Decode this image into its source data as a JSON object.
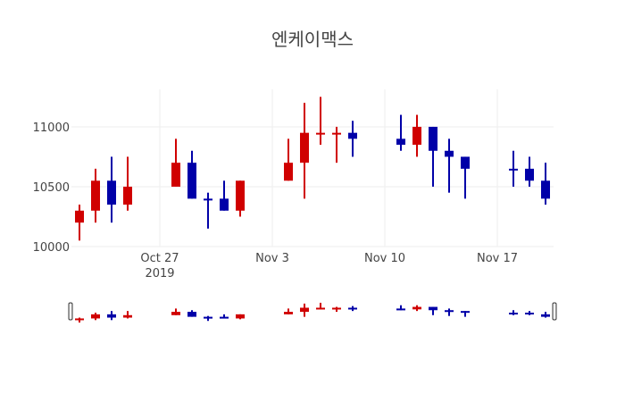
{
  "title": "엔케이맥스",
  "colors": {
    "increasing": "#d00000",
    "decreasing": "#0000a8",
    "grid": "#eeeeee",
    "text": "#444444"
  },
  "chart_data": {
    "type": "candlestick",
    "title": "엔케이맥스",
    "xlabel": "",
    "ylabel": "",
    "ylim": [
      10000,
      11313
    ],
    "xlim": [
      "2019-10-21 12:00",
      "2019-11-20 12:00"
    ],
    "grid": true,
    "legend": false,
    "rangeslider": true,
    "x_ticks": [
      {
        "date": "2019-10-27",
        "label": "Oct 27",
        "sublabel": "2019"
      },
      {
        "date": "2019-11-03",
        "label": "Nov 3",
        "sublabel": ""
      },
      {
        "date": "2019-11-10",
        "label": "Nov 10",
        "sublabel": ""
      },
      {
        "date": "2019-11-17",
        "label": "Nov 17",
        "sublabel": ""
      }
    ],
    "y_ticks": [
      10000,
      10500,
      11000
    ],
    "series": [
      {
        "date": "2019-10-22",
        "open": 10200,
        "high": 10350,
        "low": 10050,
        "close": 10300
      },
      {
        "date": "2019-10-23",
        "open": 10300,
        "high": 10650,
        "low": 10200,
        "close": 10550
      },
      {
        "date": "2019-10-24",
        "open": 10550,
        "high": 10750,
        "low": 10200,
        "close": 10350
      },
      {
        "date": "2019-10-25",
        "open": 10350,
        "high": 10750,
        "low": 10300,
        "close": 10500
      },
      {
        "date": "2019-10-28",
        "open": 10500,
        "high": 10900,
        "low": 10500,
        "close": 10700
      },
      {
        "date": "2019-10-29",
        "open": 10700,
        "high": 10800,
        "low": 10400,
        "close": 10400
      },
      {
        "date": "2019-10-30",
        "open": 10400,
        "high": 10450,
        "low": 10150,
        "close": 10400
      },
      {
        "date": "2019-10-31",
        "open": 10400,
        "high": 10550,
        "low": 10300,
        "close": 10300
      },
      {
        "date": "2019-11-01",
        "open": 10300,
        "high": 10550,
        "low": 10250,
        "close": 10550
      },
      {
        "date": "2019-11-04",
        "open": 10550,
        "high": 10900,
        "low": 10550,
        "close": 10700
      },
      {
        "date": "2019-11-05",
        "open": 10700,
        "high": 11200,
        "low": 10400,
        "close": 10950
      },
      {
        "date": "2019-11-06",
        "open": 10950,
        "high": 11250,
        "low": 10850,
        "close": 10950
      },
      {
        "date": "2019-11-07",
        "open": 10950,
        "high": 11000,
        "low": 10700,
        "close": 10950
      },
      {
        "date": "2019-11-08",
        "open": 10950,
        "high": 11050,
        "low": 10750,
        "close": 10900
      },
      {
        "date": "2019-11-11",
        "open": 10900,
        "high": 11100,
        "low": 10800,
        "close": 10850
      },
      {
        "date": "2019-11-12",
        "open": 10850,
        "high": 11100,
        "low": 10750,
        "close": 11000
      },
      {
        "date": "2019-11-13",
        "open": 11000,
        "high": 11000,
        "low": 10500,
        "close": 10800
      },
      {
        "date": "2019-11-14",
        "open": 10800,
        "high": 10900,
        "low": 10450,
        "close": 10750
      },
      {
        "date": "2019-11-15",
        "open": 10750,
        "high": 10750,
        "low": 10400,
        "close": 10650
      },
      {
        "date": "2019-11-18",
        "open": 10650,
        "high": 10800,
        "low": 10500,
        "close": 10650
      },
      {
        "date": "2019-11-19",
        "open": 10650,
        "high": 10750,
        "low": 10500,
        "close": 10550
      },
      {
        "date": "2019-11-20",
        "open": 10550,
        "high": 10700,
        "low": 10350,
        "close": 10400
      }
    ]
  }
}
